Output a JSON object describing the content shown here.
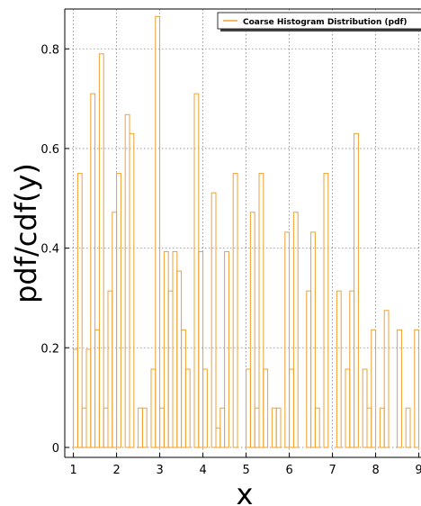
{
  "chart_data": {
    "type": "histogram",
    "xlabel": "x",
    "ylabel": "pdf/cdf(y)",
    "series": [
      {
        "name": "Coarse Histogram Distribution (pdf)",
        "color": "#f0a030",
        "bins": [
          1.0,
          1.1,
          1.2,
          1.3,
          1.4,
          1.5,
          1.6,
          1.7,
          1.8,
          1.9,
          2.0,
          2.1,
          2.2,
          2.3,
          2.4,
          2.5,
          2.6,
          2.7,
          2.8,
          2.9,
          3.0,
          3.1,
          3.2,
          3.3,
          3.4,
          3.5,
          3.6,
          3.7,
          3.8,
          3.9,
          4.0,
          4.1,
          4.2,
          4.3,
          4.4,
          4.5,
          4.6,
          4.7,
          4.8,
          4.9,
          5.0,
          5.1,
          5.2,
          5.3,
          5.4,
          5.5,
          5.6,
          5.7,
          5.8,
          5.9,
          6.0,
          6.1,
          6.2,
          6.3,
          6.4,
          6.5,
          6.6,
          6.7,
          6.8,
          6.9,
          7.0,
          7.1,
          7.2,
          7.3,
          7.4,
          7.5,
          7.6,
          7.7,
          7.8,
          7.9,
          8.0,
          8.1,
          8.2,
          8.3,
          8.4,
          8.5,
          8.6,
          8.7,
          8.8,
          8.9,
          9.0,
          9.1
        ],
        "values": [
          0.197,
          0.55,
          0.079,
          0.197,
          0.71,
          0.236,
          0.79,
          0.079,
          0.314,
          0.472,
          0.55,
          0,
          0.668,
          0.63,
          0,
          0.079,
          0.079,
          0,
          0.157,
          0.865,
          0.079,
          0.393,
          0.314,
          0.393,
          0.354,
          0.236,
          0.157,
          0,
          0.71,
          0.393,
          0.157,
          0,
          0.511,
          0.039,
          0.079,
          0.393,
          0,
          0.55,
          0,
          0,
          0.157,
          0.472,
          0.079,
          0.55,
          0.157,
          0,
          0.079,
          0.079,
          0,
          0.432,
          0.157,
          0.472,
          0,
          0,
          0.314,
          0.432,
          0.079,
          0,
          0.55,
          0,
          0,
          0.314,
          0,
          0.157,
          0.314,
          0.63,
          0,
          0.157,
          0.079,
          0.236,
          0,
          0.079,
          0.275,
          0,
          0,
          0.236,
          0,
          0.079,
          0,
          0.236,
          0,
          0.039
        ]
      }
    ],
    "xlim": [
      0.8,
      9.05
    ],
    "ylim": [
      -0.02,
      0.88
    ],
    "xticks": [
      1,
      2,
      3,
      4,
      5,
      6,
      7,
      8,
      9
    ],
    "yticks": [
      0,
      0.2,
      0.4,
      0.6,
      0.8
    ],
    "grid": true,
    "legend": "upper right"
  }
}
